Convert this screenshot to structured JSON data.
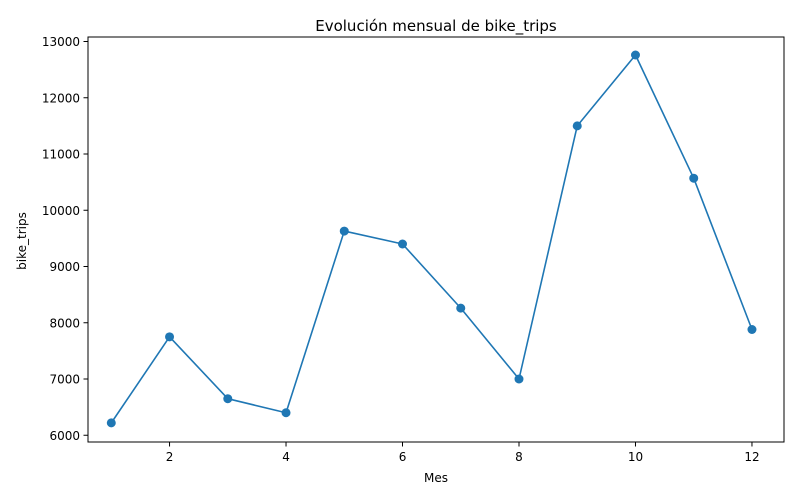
{
  "chart_data": {
    "type": "line",
    "title": "Evolución mensual de bike_trips",
    "xlabel": "Mes",
    "ylabel": "bike_trips",
    "x": [
      1,
      2,
      3,
      4,
      5,
      6,
      7,
      8,
      9,
      10,
      11,
      12
    ],
    "series": [
      {
        "values": [
          6220,
          7750,
          6650,
          6400,
          9630,
          9400,
          8260,
          7000,
          11500,
          12760,
          10570,
          7880
        ]
      }
    ],
    "xlim": [
      0.6,
      12.55
    ],
    "ylim": [
      5880,
      13080
    ],
    "xticks": [
      "2",
      "4",
      "6",
      "8",
      "10",
      "12"
    ],
    "yticks": [
      "6000",
      "7000",
      "8000",
      "9000",
      "10000",
      "11000",
      "12000",
      "13000"
    ],
    "grid": false,
    "line_color": "#1f77b4",
    "marker": "circle"
  }
}
